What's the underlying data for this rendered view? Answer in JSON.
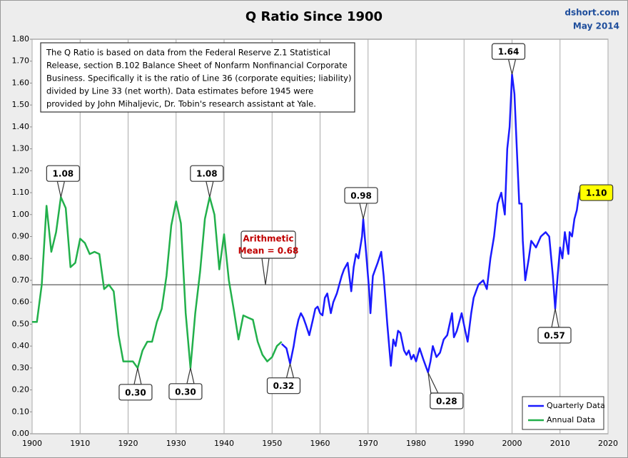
{
  "chart_data": {
    "type": "line",
    "title": "Q Ratio Since 1900",
    "source": "dshort.com",
    "date": "May 2014",
    "note": [
      "The Q Ratio is based on data from the Federal Reserve Z.1 Statistical",
      "Release, section B.102 Balance Sheet of Nonfarm Nonfinancial Corporate",
      "Business. Specifically it is the ratio of Line 36 (corporate equities; liability)",
      "divided by Line 33 (net worth).  Data estimates before 1945 were",
      "provided by John Mihaljevic, Dr. Tobin's research assistant at Yale."
    ],
    "xlim": [
      1900,
      2020
    ],
    "xticks": [
      1900,
      1910,
      1920,
      1930,
      1940,
      1950,
      1960,
      1970,
      1980,
      1990,
      2000,
      2010,
      2020
    ],
    "ylim": [
      0,
      1.8
    ],
    "yticks": [
      {
        "value": 0,
        "label": "0.00"
      },
      {
        "value": 0.1,
        "label": "0.10"
      },
      {
        "value": 0.2,
        "label": "0.20"
      },
      {
        "value": 0.3,
        "label": "0.30"
      },
      {
        "value": 0.4,
        "label": "0.40"
      },
      {
        "value": 0.5,
        "label": "0.50"
      },
      {
        "value": 0.6,
        "label": "0.60"
      },
      {
        "value": 0.7,
        "label": "0.70"
      },
      {
        "value": 0.8,
        "label": "0.80"
      },
      {
        "value": 0.9,
        "label": "0.90"
      },
      {
        "value": 1.0,
        "label": "1.00"
      },
      {
        "value": 1.1,
        "label": "1.10"
      },
      {
        "value": 1.2,
        "label": "1.20"
      },
      {
        "value": 1.3,
        "label": "1.30"
      },
      {
        "value": 1.4,
        "label": "1.40"
      },
      {
        "value": 1.5,
        "label": "1.50"
      },
      {
        "value": 1.6,
        "label": "1.60"
      },
      {
        "value": 1.7,
        "label": "1.70"
      },
      {
        "value": 1.8,
        "label": "1.80"
      }
    ],
    "grid": "x",
    "legend": "bottom-right",
    "mean": 0.68,
    "mean_label": [
      "Arithmetic",
      "Mean = 0.68"
    ],
    "series": [
      {
        "name": "Quarterly Data",
        "color": "#1a1aff",
        "x": [
          1952,
          1953,
          1953.75,
          1954.5,
          1955,
          1955.5,
          1956,
          1956.5,
          1957,
          1957.75,
          1958.5,
          1959,
          1959.5,
          1960,
          1960.5,
          1961,
          1961.5,
          1962.25,
          1962.75,
          1963.5,
          1964,
          1964.5,
          1965,
          1965.75,
          1966.5,
          1967,
          1967.5,
          1968,
          1968.75,
          1969,
          1969.5,
          1970.25,
          1970.5,
          1971,
          1971.5,
          1972,
          1972.75,
          1973.25,
          1974,
          1974.75,
          1975.25,
          1975.75,
          1976.25,
          1976.75,
          1977.5,
          1978,
          1978.5,
          1979,
          1979.5,
          1980,
          1980.75,
          1981.5,
          1982.5,
          1983,
          1983.5,
          1984.25,
          1985,
          1985.75,
          1986.5,
          1987.5,
          1987.9,
          1988.5,
          1989.5,
          1990.25,
          1990.75,
          1991.5,
          1992,
          1993,
          1994,
          1994.75,
          1995.5,
          1996.25,
          1997,
          1997.75,
          1998.5,
          1999,
          1999.5,
          2000,
          2000.5,
          2001,
          2001.5,
          2002,
          2002.25,
          2002.75,
          2003.5,
          2004,
          2005,
          2006,
          2007,
          2007.75,
          2008.5,
          2009,
          2009.5,
          2010,
          2010.5,
          2011,
          2011.75,
          2012,
          2012.5,
          2013,
          2013.5,
          2014
        ],
        "values": [
          0.41,
          0.39,
          0.32,
          0.4,
          0.47,
          0.52,
          0.55,
          0.53,
          0.5,
          0.45,
          0.52,
          0.57,
          0.58,
          0.55,
          0.54,
          0.62,
          0.64,
          0.55,
          0.6,
          0.64,
          0.68,
          0.72,
          0.75,
          0.78,
          0.65,
          0.76,
          0.82,
          0.8,
          0.9,
          0.98,
          0.85,
          0.65,
          0.55,
          0.72,
          0.75,
          0.78,
          0.83,
          0.72,
          0.5,
          0.31,
          0.43,
          0.4,
          0.47,
          0.46,
          0.38,
          0.36,
          0.38,
          0.34,
          0.36,
          0.33,
          0.39,
          0.34,
          0.28,
          0.33,
          0.4,
          0.35,
          0.37,
          0.43,
          0.45,
          0.55,
          0.44,
          0.47,
          0.55,
          0.47,
          0.42,
          0.55,
          0.62,
          0.68,
          0.7,
          0.66,
          0.8,
          0.9,
          1.05,
          1.1,
          1.0,
          1.3,
          1.4,
          1.64,
          1.55,
          1.3,
          1.05,
          1.05,
          0.88,
          0.7,
          0.8,
          0.88,
          0.85,
          0.9,
          0.92,
          0.9,
          0.72,
          0.57,
          0.72,
          0.85,
          0.8,
          0.92,
          0.82,
          0.92,
          0.9,
          0.98,
          1.02,
          1.1
        ]
      },
      {
        "name": "Annual Data",
        "color": "#22b04b",
        "x": [
          1900,
          1901,
          1902,
          1903,
          1904,
          1905,
          1906,
          1907,
          1908,
          1909,
          1910,
          1911,
          1912,
          1913,
          1914,
          1915,
          1916,
          1917,
          1918,
          1919,
          1920,
          1921,
          1922,
          1923,
          1924,
          1925,
          1926,
          1927,
          1928,
          1929,
          1930,
          1931,
          1932,
          1933,
          1934,
          1935,
          1936,
          1937,
          1938,
          1939,
          1940,
          1941,
          1942,
          1943,
          1944,
          1945,
          1946,
          1947,
          1948,
          1949,
          1950,
          1951,
          1952
        ],
        "values": [
          0.51,
          0.51,
          0.68,
          1.04,
          0.83,
          0.92,
          1.08,
          1.03,
          0.76,
          0.78,
          0.89,
          0.87,
          0.82,
          0.83,
          0.82,
          0.66,
          0.68,
          0.65,
          0.45,
          0.33,
          0.33,
          0.33,
          0.3,
          0.38,
          0.42,
          0.42,
          0.51,
          0.57,
          0.72,
          0.95,
          1.06,
          0.96,
          0.55,
          0.3,
          0.55,
          0.74,
          0.98,
          1.08,
          1.0,
          0.75,
          0.91,
          0.7,
          0.57,
          0.43,
          0.54,
          0.53,
          0.52,
          0.42,
          0.36,
          0.33,
          0.35,
          0.4,
          0.42
        ]
      }
    ],
    "annotations": [
      {
        "text": "1.08",
        "x": 1906,
        "y": 1.08
      },
      {
        "text": "0.30",
        "x": 1922,
        "y": 0.3
      },
      {
        "text": "0.30",
        "x": 1933,
        "y": 0.3
      },
      {
        "text": "1.08",
        "x": 1937,
        "y": 1.08
      },
      {
        "text": "0.32",
        "x": 1953.75,
        "y": 0.32
      },
      {
        "text": "0.98",
        "x": 1969,
        "y": 0.98
      },
      {
        "text": "0.28",
        "x": 1982.5,
        "y": 0.28
      },
      {
        "text": "1.64",
        "x": 2000,
        "y": 1.64
      },
      {
        "text": "0.57",
        "x": 2009,
        "y": 0.57
      },
      {
        "text": "1.10",
        "x": 2014,
        "y": 1.1,
        "color": "#ffff00"
      }
    ]
  }
}
